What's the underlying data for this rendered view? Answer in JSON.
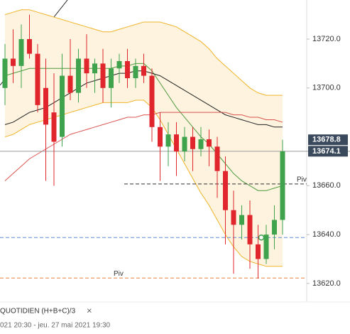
{
  "chart_data": {
    "type": "candlestick",
    "ylim": [
      13612.4,
      13736
    ],
    "yticks": [
      {
        "value": 13620,
        "label": "13620.0"
      },
      {
        "value": 13640,
        "label": "13640.0"
      },
      {
        "value": 13660,
        "label": "13660.0"
      },
      {
        "value": 13700,
        "label": "13700.0"
      },
      {
        "value": 13720,
        "label": "13720.0"
      }
    ],
    "open": [
      13700,
      13712,
      13709,
      13720,
      13714,
      13700,
      13690,
      13680,
      13705,
      13698,
      13712,
      13706,
      13710,
      13700,
      13708,
      13711,
      13704,
      13709,
      13705,
      13684,
      13676,
      13681,
      13674,
      13680,
      13675,
      13679,
      13676,
      13666,
      13650,
      13644,
      13648,
      13636,
      13630,
      13640,
      13646
    ],
    "high": [
      13718,
      13724,
      13726,
      13730,
      13718,
      13712,
      13706,
      13714,
      13720,
      13716,
      13722,
      13712,
      13716,
      13712,
      13714,
      13716,
      13712,
      13714,
      13708,
      13690,
      13686,
      13686,
      13684,
      13684,
      13684,
      13683,
      13680,
      13672,
      13658,
      13652,
      13654,
      13644,
      13644,
      13652,
      13678.8
    ],
    "low": [
      13693,
      13702,
      13700,
      13712,
      13690,
      13662,
      13660,
      13676,
      13695,
      13694,
      13700,
      13698,
      13694,
      13692,
      13702,
      13700,
      13700,
      13702,
      13678,
      13662,
      13668,
      13664,
      13670,
      13666,
      13672,
      13668,
      13655,
      13636,
      13624,
      13638,
      13626,
      13622,
      13628,
      13634,
      13640
    ],
    "close": [
      13712,
      13709,
      13720,
      13714,
      13693,
      13685,
      13678,
      13705,
      13698,
      13712,
      13706,
      13710,
      13700,
      13708,
      13711,
      13704,
      13709,
      13705,
      13684,
      13676,
      13681,
      13674,
      13680,
      13675,
      13679,
      13676,
      13666,
      13650,
      13644,
      13648,
      13636,
      13630,
      13640,
      13646,
      13674.1
    ],
    "up_color": "#3fa34d",
    "down_color": "#e0262c",
    "band_fill": "#fdf3df",
    "upper_band": {
      "color": "#f0b429",
      "values": [
        13730,
        13731,
        13732,
        13732,
        13731,
        13730,
        13729,
        13728,
        13727,
        13726,
        13725,
        13724,
        13723,
        13723,
        13724,
        13725,
        13726,
        13727,
        13727,
        13727,
        13726,
        13725,
        13723,
        13721,
        13719,
        13716,
        13712,
        13709,
        13706,
        13703,
        13700,
        13698,
        13697,
        13697,
        13697
      ]
    },
    "lower_band": {
      "color": "#f0b429",
      "values": [
        13680,
        13681,
        13683,
        13685,
        13686,
        13687,
        13688,
        13689,
        13690,
        13691,
        13692,
        13693,
        13694,
        13694,
        13694,
        13694,
        13695,
        13695,
        13692,
        13687,
        13681,
        13675,
        13669,
        13663,
        13657,
        13652,
        13646,
        13640,
        13635,
        13631,
        13629,
        13628,
        13627,
        13627,
        13627
      ]
    },
    "moving_averages": [
      {
        "color": "#4f9a3f",
        "values": [
          13705,
          13706,
          13707,
          13708,
          13708,
          13708,
          13708,
          13708,
          13708,
          13708,
          13708,
          13708,
          13708,
          13708,
          13709,
          13709,
          13710,
          13710,
          13707,
          13702,
          13697,
          13692,
          13688,
          13684,
          13680,
          13677,
          13673,
          13669,
          13665,
          13662,
          13660,
          13658,
          13658,
          13659,
          13660
        ]
      },
      {
        "color": "#222222",
        "values": [
          13685,
          13686,
          13688,
          13690,
          13691,
          13692,
          13694,
          13696,
          13698,
          13700,
          13702,
          13703,
          13704,
          13705,
          13706,
          13706,
          13707,
          13707,
          13706,
          13705,
          13703,
          13701,
          13699,
          13697,
          13695,
          13693,
          13691,
          13689,
          13688,
          13687,
          13686,
          13685,
          13685,
          13684,
          13684
        ]
      },
      {
        "color": "#d9534f",
        "values": [
          13662,
          13665,
          13668,
          13671,
          13673,
          13675,
          13677,
          13679,
          13681,
          13682,
          13683,
          13684,
          13685,
          13686,
          13687,
          13688,
          13688,
          13689,
          13689,
          13690,
          13690,
          13690,
          13690,
          13690,
          13690,
          13690,
          13690,
          13690,
          13689,
          13689,
          13688,
          13688,
          13687,
          13687,
          13686
        ]
      }
    ],
    "levels": [
      {
        "value": 13660.7,
        "label": "Piv",
        "color": "#333333",
        "dashed": true
      },
      {
        "value": 13638.8,
        "color": "#5b8bd0",
        "dashed": true
      },
      {
        "value": 13622.2,
        "label": "Piv",
        "color": "#e8823a",
        "dashed": true
      },
      {
        "value": 13674.1,
        "color": "#9a9a9a",
        "dashed": false
      }
    ],
    "price_labels": [
      13678.8,
      13674.1
    ],
    "price_label_color": "#3a4a5c",
    "footer": {
      "study": "QUOTIDIEN  (H+B+C)/3",
      "close": "×",
      "range": "021 20:30 - jeu. 27 mai 2021 19:30"
    }
  }
}
